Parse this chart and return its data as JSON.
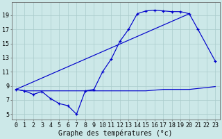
{
  "bg_color": "#cce8e8",
  "grid_color": "#aacccc",
  "line_color": "#0000cc",
  "xlabel": "Graphe des températures (°c)",
  "xlabel_fontsize": 7,
  "tick_fontsize": 6,
  "ylabel_ticks": [
    5,
    7,
    9,
    11,
    13,
    15,
    17,
    19
  ],
  "xlim": [
    -0.5,
    23.5
  ],
  "ylim": [
    4.2,
    20.8
  ],
  "hours": [
    0,
    1,
    2,
    3,
    4,
    5,
    6,
    7,
    8,
    9,
    10,
    11,
    12,
    13,
    14,
    15,
    16,
    17,
    18,
    19,
    20,
    21,
    22,
    23
  ],
  "temp_actual": [
    8.5,
    8.3,
    7.8,
    8.2,
    7.2,
    6.5,
    6.2,
    5.0,
    8.3,
    8.5,
    11.0,
    12.8,
    15.3,
    17.0,
    19.2,
    19.6,
    19.7,
    19.6,
    19.5,
    19.5,
    19.2,
    17.0,
    null,
    12.5
  ],
  "temp_linear": [
    8.5,
    null,
    null,
    null,
    null,
    null,
    null,
    null,
    null,
    null,
    null,
    null,
    null,
    null,
    null,
    null,
    null,
    null,
    null,
    null,
    19.2,
    null,
    null,
    null
  ],
  "temp_min": [
    8.5,
    8.3,
    8.3,
    8.3,
    8.3,
    8.3,
    8.3,
    8.3,
    8.3,
    8.3,
    8.3,
    8.3,
    8.3,
    8.3,
    8.3,
    8.3,
    8.4,
    8.5,
    8.5,
    8.5,
    8.5,
    null,
    null,
    8.9
  ]
}
